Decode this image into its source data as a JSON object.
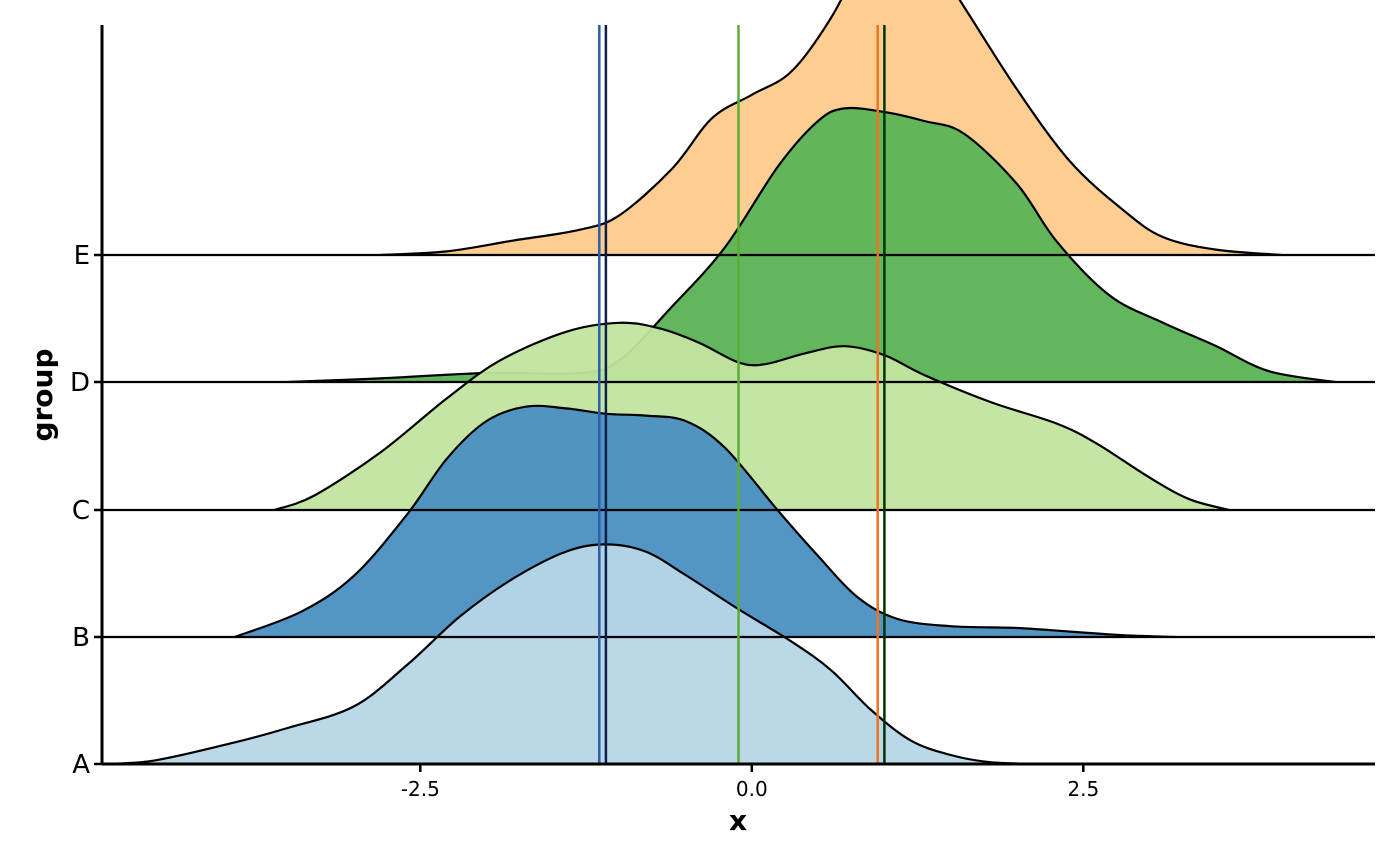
{
  "chart_data": {
    "type": "ridgeline-density",
    "xlabel": "x",
    "ylabel": "group",
    "xlim": [
      -4.9,
      4.7
    ],
    "x_ticks": [
      -2.5,
      0.0,
      2.5
    ],
    "x_tick_labels": [
      "-2.5",
      "0.0",
      "2.5"
    ],
    "categories": [
      "A",
      "B",
      "C",
      "D",
      "E"
    ],
    "grid": false,
    "legend": "none",
    "series": [
      {
        "group": "A",
        "color": "#b7d6e8",
        "vline": -1.15,
        "vline_color": "#2b5da8",
        "density": [
          [
            -4.9,
            0
          ],
          [
            -4.5,
            0.02
          ],
          [
            -3.9,
            0.12
          ],
          [
            -3.5,
            0.2
          ],
          [
            -3.0,
            0.32
          ],
          [
            -2.6,
            0.55
          ],
          [
            -2.2,
            0.82
          ],
          [
            -1.8,
            1.03
          ],
          [
            -1.4,
            1.18
          ],
          [
            -1.1,
            1.22
          ],
          [
            -0.8,
            1.18
          ],
          [
            -0.5,
            1.05
          ],
          [
            -0.1,
            0.86
          ],
          [
            0.3,
            0.68
          ],
          [
            0.6,
            0.52
          ],
          [
            0.9,
            0.3
          ],
          [
            1.2,
            0.13
          ],
          [
            1.5,
            0.05
          ],
          [
            1.8,
            0.01
          ],
          [
            2.2,
            0
          ]
        ]
      },
      {
        "group": "B",
        "color": "#4a90c2",
        "vline": -1.1,
        "vline_color": "#0b1f4a",
        "density": [
          [
            -3.9,
            0
          ],
          [
            -3.4,
            0.14
          ],
          [
            -3.0,
            0.34
          ],
          [
            -2.6,
            0.68
          ],
          [
            -2.3,
            0.99
          ],
          [
            -2.0,
            1.2
          ],
          [
            -1.7,
            1.28
          ],
          [
            -1.4,
            1.27
          ],
          [
            -1.1,
            1.24
          ],
          [
            -0.8,
            1.23
          ],
          [
            -0.5,
            1.2
          ],
          [
            -0.2,
            1.05
          ],
          [
            0.2,
            0.7
          ],
          [
            0.5,
            0.45
          ],
          [
            0.8,
            0.22
          ],
          [
            1.1,
            0.1
          ],
          [
            1.5,
            0.06
          ],
          [
            2.0,
            0.05
          ],
          [
            2.4,
            0.03
          ],
          [
            2.8,
            0.01
          ],
          [
            3.2,
            0
          ]
        ]
      },
      {
        "group": "C",
        "color": "#c2e49f",
        "vline": -0.1,
        "vline_color": "#5aae33",
        "density": [
          [
            -3.6,
            0
          ],
          [
            -3.3,
            0.08
          ],
          [
            -2.8,
            0.32
          ],
          [
            -2.3,
            0.62
          ],
          [
            -1.9,
            0.83
          ],
          [
            -1.4,
            0.99
          ],
          [
            -1.0,
            1.04
          ],
          [
            -0.7,
            1.01
          ],
          [
            -0.4,
            0.93
          ],
          [
            -0.1,
            0.82
          ],
          [
            0.1,
            0.81
          ],
          [
            0.4,
            0.87
          ],
          [
            0.7,
            0.91
          ],
          [
            1.0,
            0.86
          ],
          [
            1.3,
            0.75
          ],
          [
            1.8,
            0.6
          ],
          [
            2.3,
            0.48
          ],
          [
            2.6,
            0.37
          ],
          [
            3.0,
            0.18
          ],
          [
            3.3,
            0.06
          ],
          [
            3.6,
            0
          ]
        ]
      },
      {
        "group": "D",
        "color": "#5ab355",
        "vline": 1.0,
        "vline_color": "#003300",
        "density": [
          [
            -3.5,
            0
          ],
          [
            -2.8,
            0.02
          ],
          [
            -2.0,
            0.05
          ],
          [
            -1.3,
            0.05
          ],
          [
            -1.0,
            0.12
          ],
          [
            -0.6,
            0.42
          ],
          [
            -0.2,
            0.75
          ],
          [
            0.2,
            1.2
          ],
          [
            0.5,
            1.45
          ],
          [
            0.7,
            1.52
          ],
          [
            1.0,
            1.5
          ],
          [
            1.3,
            1.45
          ],
          [
            1.6,
            1.38
          ],
          [
            2.0,
            1.1
          ],
          [
            2.3,
            0.78
          ],
          [
            2.7,
            0.48
          ],
          [
            3.1,
            0.33
          ],
          [
            3.5,
            0.2
          ],
          [
            3.9,
            0.06
          ],
          [
            4.4,
            0
          ]
        ]
      },
      {
        "group": "E",
        "color": "#fdca8c",
        "vline": 0.95,
        "vline_color": "#ef7422",
        "density": [
          [
            -2.8,
            0
          ],
          [
            -2.3,
            0.02
          ],
          [
            -1.8,
            0.08
          ],
          [
            -1.3,
            0.14
          ],
          [
            -1.0,
            0.22
          ],
          [
            -0.6,
            0.48
          ],
          [
            -0.3,
            0.76
          ],
          [
            0.0,
            0.89
          ],
          [
            0.3,
            1.02
          ],
          [
            0.6,
            1.32
          ],
          [
            0.9,
            1.73
          ],
          [
            1.1,
            1.82
          ],
          [
            1.3,
            1.72
          ],
          [
            1.6,
            1.38
          ],
          [
            2.0,
            0.92
          ],
          [
            2.4,
            0.52
          ],
          [
            2.8,
            0.25
          ],
          [
            3.1,
            0.1
          ],
          [
            3.5,
            0.03
          ],
          [
            4.0,
            0
          ]
        ]
      }
    ]
  }
}
